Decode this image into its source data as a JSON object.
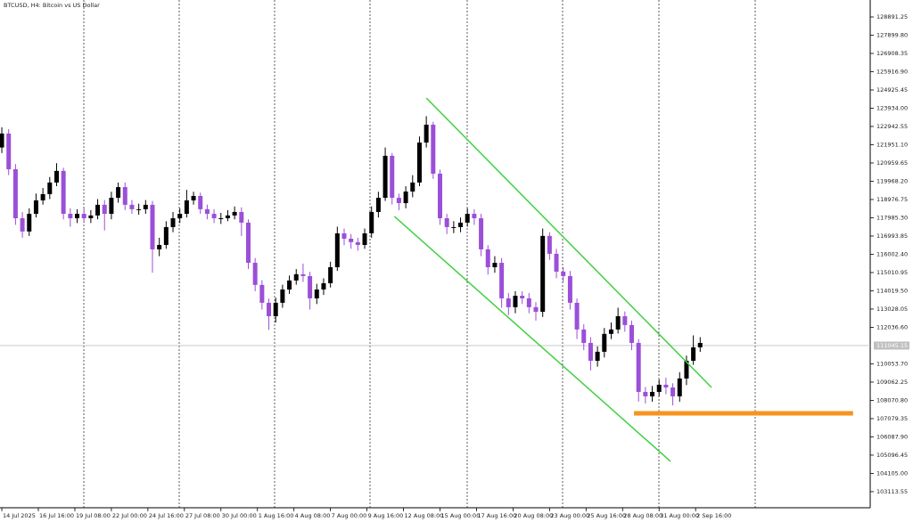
{
  "chart_data": {
    "type": "candlestick",
    "title": "BTCUSD, H4:  Bitcoin vs US Dollar",
    "up_color": "#000000",
    "down_color": "#9b4fd8",
    "xlim": [
      -0.8,
      380.5
    ],
    "ylim": [
      102240,
      129810
    ],
    "xticks": [
      {
        "value": 0,
        "label": "14 Jul 2025"
      },
      {
        "value": 16,
        "label": "16 Jul 16:00"
      },
      {
        "value": 32,
        "label": "19 Jul 08:00"
      },
      {
        "value": 48,
        "label": "22 Jul 00:00"
      },
      {
        "value": 64,
        "label": "24 Jul 16:00"
      },
      {
        "value": 80,
        "label": "27 Jul 08:00"
      },
      {
        "value": 96,
        "label": "30 Jul 00:00"
      },
      {
        "value": 112,
        "label": "1 Aug 16:00"
      },
      {
        "value": 128,
        "label": "4 Aug 08:00"
      },
      {
        "value": 144,
        "label": "7 Aug 00:00"
      },
      {
        "value": 160,
        "label": "9 Aug 16:00"
      },
      {
        "value": 176,
        "label": "12 Aug 08:00"
      },
      {
        "value": 192,
        "label": "15 Aug 00:00"
      },
      {
        "value": 208,
        "label": "17 Aug 16:00"
      },
      {
        "value": 224,
        "label": "20 Aug 08:00"
      },
      {
        "value": 240,
        "label": "23 Aug 00:00"
      },
      {
        "value": 256,
        "label": "25 Aug 16:00"
      },
      {
        "value": 272,
        "label": "28 Aug 08:00"
      },
      {
        "value": 288,
        "label": "31 Aug 00:00"
      },
      {
        "value": 304,
        "label": "2 Sep 16:00"
      }
    ],
    "yticks": [
      128891.25,
      {
        "value": 127899.8,
        "label": "127899.80"
      },
      126908.35,
      {
        "value": 125916.9,
        "label": "125916.90"
      },
      124925.45,
      {
        "value": 123934,
        "label": "123934.00"
      },
      122942.55,
      {
        "value": 121951.1,
        "label": "121951.10"
      },
      120959.65,
      {
        "value": 119968.2,
        "label": "119968.20"
      },
      118976.75,
      {
        "value": 117985.3,
        "label": "117985.30"
      },
      116993.85,
      {
        "value": 116002.4,
        "label": "116002.40"
      },
      115010.95,
      {
        "value": 114019.5,
        "label": "114019.50"
      },
      113028.05,
      {
        "value": 112036.6,
        "label": "112036.60"
      },
      {
        "value": 110053.7,
        "label": "110053.70"
      },
      109062.25,
      {
        "value": 108070.8,
        "label": "108070.80"
      },
      107079.35,
      {
        "value": 106087.9,
        "label": "106087.90"
      },
      105096.45,
      {
        "value": 104105,
        "label": "104105.00"
      },
      103113.55
    ],
    "last_price": 111045.15,
    "x": [
      0,
      3,
      6,
      9,
      12,
      15,
      18,
      21,
      24,
      27,
      30,
      33,
      36,
      39,
      42,
      45,
      48,
      51,
      54,
      57,
      60,
      63,
      66,
      69,
      72,
      75,
      78,
      81,
      84,
      87,
      90,
      93,
      96,
      99,
      102,
      105,
      108,
      111,
      114,
      117,
      120,
      123,
      126,
      129,
      132,
      135,
      138,
      141,
      144,
      147,
      150,
      153,
      156,
      159,
      162,
      165,
      168,
      171,
      174,
      177,
      180,
      183,
      186,
      189,
      192,
      195,
      198,
      201,
      204,
      207,
      210,
      213,
      216,
      219,
      222,
      225,
      228,
      231,
      234,
      237,
      240,
      243,
      246,
      249,
      252,
      255,
      258,
      261,
      264,
      267,
      270,
      273,
      276,
      279,
      282,
      285,
      288,
      291,
      294,
      297,
      300,
      303,
      306
    ],
    "open": [
      121800,
      122560,
      120620,
      117960,
      117240,
      118200,
      118930,
      119270,
      119900,
      120530,
      118200,
      117960,
      118200,
      117960,
      118110,
      118690,
      118200,
      119070,
      119650,
      118690,
      118450,
      118450,
      118690,
      116270,
      116510,
      117480,
      117960,
      118200,
      118930,
      119170,
      118450,
      118200,
      117960,
      117960,
      118110,
      118300,
      117720,
      115540,
      114340,
      113370,
      112640,
      113370,
      114090,
      114580,
      114920,
      114820,
      113610,
      114090,
      114430,
      115300,
      117140,
      116850,
      116660,
      116510,
      117140,
      118300,
      119070,
      121350,
      119070,
      118780,
      119410,
      119900,
      122070,
      123040,
      120380,
      117960,
      117480,
      117480,
      117720,
      118200,
      117960,
      116270,
      115300,
      115540,
      113610,
      113130,
      113750,
      113610,
      113130,
      112880,
      117000,
      116030,
      115060,
      114820,
      113370,
      111920,
      111190,
      110220,
      110710,
      111680,
      111920,
      112640,
      112160,
      111190,
      108530,
      108290,
      108530,
      108920,
      108770,
      108290,
      109260,
      110220,
      110950
    ],
    "high": [
      122900,
      122800,
      120900,
      118300,
      118500,
      119300,
      119600,
      120200,
      120950,
      120700,
      118500,
      118450,
      118500,
      118400,
      119000,
      118950,
      119400,
      119900,
      119900,
      118950,
      118750,
      118950,
      118900,
      116900,
      117800,
      118300,
      118500,
      119500,
      119400,
      119350,
      118700,
      118450,
      118250,
      118400,
      118600,
      118550,
      117900,
      115800,
      114600,
      113600,
      113650,
      114350,
      114850,
      115200,
      115500,
      115050,
      114400,
      114700,
      115600,
      117500,
      117400,
      117100,
      116900,
      117400,
      118600,
      119400,
      121800,
      121500,
      119300,
      119700,
      120300,
      122400,
      123500,
      123200,
      120600,
      118200,
      117800,
      118000,
      118500,
      118450,
      118200,
      116500,
      115900,
      115800,
      113900,
      114000,
      114000,
      113900,
      113400,
      117400,
      117200,
      116300,
      115300,
      115100,
      113600,
      112200,
      111500,
      111000,
      112000,
      112300,
      113100,
      112900,
      112400,
      111400,
      108800,
      108850,
      109200,
      109300,
      109000,
      109600,
      110500,
      111600,
      111500
    ],
    "low": [
      121500,
      120300,
      117600,
      116900,
      117000,
      118000,
      118700,
      119000,
      119700,
      117900,
      117500,
      117700,
      117700,
      117700,
      117900,
      117300,
      117900,
      118800,
      118400,
      118200,
      118150,
      118200,
      115000,
      115900,
      116300,
      117200,
      117700,
      118000,
      118700,
      118200,
      117900,
      117700,
      117650,
      117800,
      117900,
      117000,
      115200,
      114000,
      113000,
      111900,
      112300,
      113100,
      113850,
      114350,
      114500,
      113000,
      113300,
      113800,
      114200,
      115100,
      116500,
      116300,
      116200,
      116300,
      116900,
      118000,
      118900,
      118700,
      118400,
      118500,
      119100,
      119700,
      121800,
      120100,
      117600,
      117100,
      117150,
      117200,
      117500,
      117600,
      115900,
      114900,
      115000,
      113100,
      112700,
      112800,
      113300,
      112800,
      112400,
      112600,
      115700,
      114700,
      114500,
      113000,
      111400,
      110800,
      109700,
      109900,
      110400,
      111400,
      111700,
      111800,
      110800,
      108000,
      107900,
      108000,
      108300,
      108400,
      107800,
      108000,
      108900,
      110000,
      110700
    ],
    "close": [
      122560,
      120620,
      117960,
      117240,
      118200,
      118930,
      119270,
      119900,
      120530,
      118200,
      117960,
      118200,
      117960,
      118110,
      118690,
      118200,
      119070,
      119650,
      118690,
      118450,
      118450,
      118690,
      116270,
      116510,
      117480,
      117960,
      118200,
      118930,
      119170,
      118450,
      118200,
      117960,
      117960,
      118110,
      118300,
      117720,
      115540,
      114340,
      113370,
      112640,
      113370,
      114090,
      114580,
      114920,
      114820,
      113610,
      114090,
      114430,
      115300,
      117140,
      116850,
      116660,
      116510,
      117140,
      118300,
      119070,
      121350,
      119070,
      118780,
      119410,
      119900,
      122070,
      123040,
      120380,
      117960,
      117480,
      117480,
      117720,
      118200,
      117960,
      116270,
      115300,
      115540,
      113610,
      113130,
      113750,
      113610,
      113130,
      112880,
      117000,
      116030,
      115060,
      114820,
      113370,
      111920,
      111190,
      110220,
      110710,
      111680,
      111920,
      112640,
      112160,
      111190,
      108530,
      108290,
      108530,
      108920,
      108770,
      108290,
      109260,
      110220,
      110950,
      111190
    ],
    "trendlines": [
      {
        "color": "#3fd13f",
        "x": [
          186,
          311
        ],
        "y": [
          124490,
          108770
        ]
      },
      {
        "color": "#3fd13f",
        "x": [
          172,
          293
        ],
        "y": [
          118060,
          104760
        ]
      }
    ],
    "level": {
      "color": "#f7931e",
      "x": [
        277,
        373
      ],
      "y": 107370
    }
  }
}
